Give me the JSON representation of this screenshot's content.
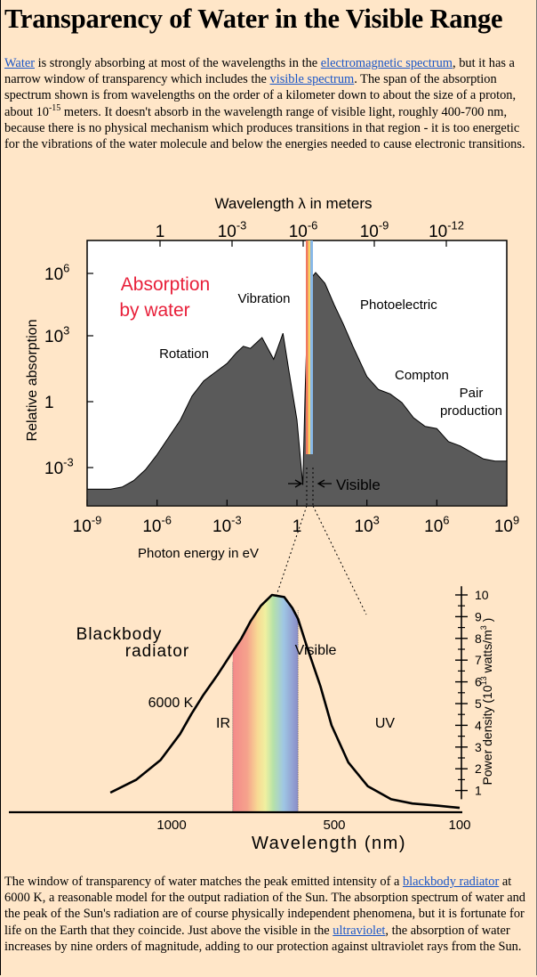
{
  "page": {
    "title": "Transparency of Water in the Visible Range",
    "intro": {
      "link_water": "Water",
      "t1": " is strongly absorbing at most of the wavelengths in the ",
      "link_em": "electromagnetic spectrum",
      "t2": ", but it has a narrow window of transparency which includes the ",
      "link_visible": "visible spectrum",
      "t3": ". The span of the absorption spectrum shown is from wavelengths on the order of a kilometer down to about the size of a proton, about 10",
      "exp": "-15",
      "t4": " meters. It doesn't absorb in the wavelength range of visible light, roughly 400-700 nm, because there is no physical mechanism which produces transitions in that region - it is too energetic for the vibrations of the water molecule and below the energies needed to cause electronic transitions."
    },
    "outro": {
      "t1": "The window of transparency of water matches the peak emitted intensity of a ",
      "link_blackbody": "blackbody radiator",
      "t2": " at 6000 K, a reasonable model for the output radiation of the Sun. The absorption spectrum of water and the peak of the Sun's radiation are of course physically independent phenomena, but it is fortunate for life on the Earth that they coincide. Just above the visible in the ",
      "link_uv": "ultraviolet",
      "t3": ", the absorption of water increases by nine orders of magnitude, adding to our protection against ultraviolet rays from the Sun."
    },
    "colors": {
      "background": "#ffe6c8",
      "link": "#1a56c8",
      "absorption_fill": "#5a5a5a",
      "title_red": "#e8203a"
    }
  },
  "chart_data": [
    {
      "type": "area",
      "title": "Absorption by water",
      "top_axis_label": "Wavelength λ in meters",
      "top_ticks": [
        {
          "base": "1",
          "exp": ""
        },
        {
          "base": "10",
          "exp": "-3"
        },
        {
          "base": "10",
          "exp": "-6"
        },
        {
          "base": "10",
          "exp": "-9"
        },
        {
          "base": "10",
          "exp": "-12"
        }
      ],
      "xlabel": "Photon energy in eV",
      "x_ticks": [
        {
          "base": "10",
          "exp": "-9"
        },
        {
          "base": "10",
          "exp": "-6"
        },
        {
          "base": "10",
          "exp": "-3"
        },
        {
          "base": "1",
          "exp": ""
        },
        {
          "base": "10",
          "exp": "3"
        },
        {
          "base": "10",
          "exp": "6"
        },
        {
          "base": "10",
          "exp": "9"
        }
      ],
      "ylabel": "Relative  absorption",
      "y_ticks": [
        {
          "base": "10",
          "exp": "6"
        },
        {
          "base": "10",
          "exp": "3"
        },
        {
          "base": "1",
          "exp": ""
        },
        {
          "base": "10",
          "exp": "-3"
        }
      ],
      "x_scale": "log",
      "y_scale": "log",
      "xlim_log10_eV": [
        -9,
        9
      ],
      "annotations": [
        "Rotation",
        "Vibration",
        "Photoelectric",
        "Compton",
        "Pair production",
        "Visible"
      ],
      "series": [
        {
          "x_log10_eV": [
            -9,
            -8.5,
            -8,
            -7.5,
            -7,
            -6.5,
            -6,
            -5.5,
            -5,
            -4.5,
            -4,
            -3.5,
            -3,
            -2.6,
            -2.3,
            -2,
            -1.5,
            -1,
            -0.6,
            -0.35,
            0,
            0.25,
            0.35,
            0.5,
            0.8,
            1.2,
            1.6,
            2,
            2.4,
            3,
            3.5,
            4,
            4.5,
            5,
            5.5,
            6,
            6.5,
            7,
            7.5,
            8,
            8.5,
            9
          ],
          "y_log10": [
            -4,
            -4,
            -4,
            -3.9,
            -3.6,
            -3.1,
            -2.4,
            -1.6,
            -0.8,
            0.3,
            1.0,
            1.4,
            1.8,
            2.3,
            2.6,
            2.5,
            3.0,
            2.0,
            3.2,
            1.5,
            -0.8,
            -3.8,
            0.5,
            5.6,
            6.0,
            5.5,
            4.5,
            3.6,
            2.6,
            1.2,
            0.6,
            0.4,
            0.0,
            -0.7,
            -1.1,
            -1.2,
            -1.8,
            -2.0,
            -2.3,
            -2.6,
            -2.7,
            -2.7
          ]
        }
      ]
    },
    {
      "type": "line",
      "title": "Blackbody radiator",
      "curve_label": "6000 K",
      "region_labels": [
        "IR",
        "Visible",
        "UV"
      ],
      "xlabel": "Wavelength (nm)",
      "x_ticks": [
        "1000",
        "500",
        "100"
      ],
      "ylabel": "Power density (10",
      "ylabel_exp": "13",
      "ylabel_tail": " watts/m",
      "ylabel_exp2": "3",
      "ylabel_end": " )",
      "y_ticks": [
        "1",
        "2",
        "3",
        "4",
        "5",
        "6",
        "7",
        "8",
        "9",
        "10"
      ],
      "ylim": [
        0,
        10.5
      ],
      "visible_band_nm": [
        700,
        400
      ],
      "series": [
        {
          "x_nm": [
            2000,
            1600,
            1300,
            1100,
            1000,
            900,
            800,
            700,
            650,
            600,
            550,
            500,
            450,
            420,
            400,
            370,
            330,
            300,
            260,
            220,
            180,
            150,
            120,
            100
          ],
          "values": [
            0.9,
            1.5,
            2.4,
            3.6,
            4.5,
            5.4,
            6.3,
            7.4,
            8.0,
            8.8,
            9.5,
            10.0,
            9.9,
            9.4,
            8.9,
            7.6,
            5.8,
            4.0,
            2.3,
            1.2,
            0.6,
            0.4,
            0.3,
            0.2
          ]
        }
      ]
    }
  ]
}
